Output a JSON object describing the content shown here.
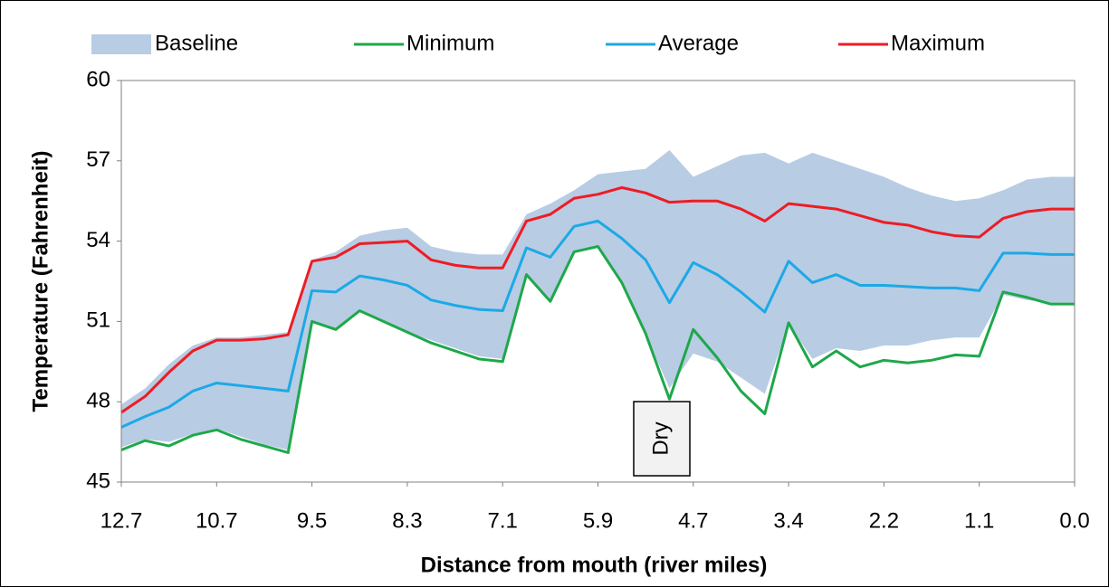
{
  "chart_data": {
    "type": "line",
    "x_label": "Distance from mouth (river miles)",
    "y_label": "Temperature (Fahrenheit)",
    "categories": [
      "12.7",
      null,
      null,
      null,
      "10.7",
      null,
      null,
      null,
      "9.5",
      null,
      null,
      null,
      "8.3",
      null,
      null,
      null,
      "7.1",
      null,
      null,
      null,
      "5.9",
      null,
      null,
      null,
      "4.7",
      null,
      null,
      null,
      "3.4",
      null,
      null,
      null,
      "2.2",
      null,
      null,
      null,
      "1.1",
      null,
      null,
      null,
      "0.0"
    ],
    "ylim": [
      45,
      60
    ],
    "yticks": [
      45,
      48,
      51,
      54,
      57,
      60
    ],
    "grid": false,
    "legend": "top",
    "annotations": [
      "Dry"
    ],
    "series": [
      {
        "name": "Baseline",
        "color": "#b8cce4",
        "kind": "band",
        "values": [
          47.9,
          48.5,
          49.4,
          50.1,
          50.4,
          50.4,
          50.5,
          50.6,
          53.3,
          53.6,
          54.2,
          54.4,
          54.5,
          53.8,
          53.6,
          53.5,
          53.5,
          55.0,
          55.4,
          55.9,
          56.5,
          56.6,
          56.7,
          57.4,
          56.4,
          56.8,
          57.2,
          57.3,
          56.9,
          57.3,
          57.0,
          56.7,
          56.4,
          56.0,
          55.7,
          55.5,
          55.6,
          55.9,
          56.3,
          56.4,
          56.4
        ],
        "lower": [
          46.3,
          46.6,
          46.5,
          46.8,
          47.0,
          46.7,
          46.4,
          46.2,
          51.0,
          50.7,
          51.4,
          51.0,
          50.6,
          50.3,
          50.0,
          49.7,
          49.6,
          52.8,
          51.8,
          53.6,
          53.8,
          52.4,
          50.5,
          48.5,
          49.8,
          49.5,
          48.9,
          48.3,
          50.9,
          49.6,
          50.0,
          49.9,
          50.1,
          50.1,
          50.3,
          50.4,
          50.4,
          52.0,
          51.8,
          51.7,
          51.7
        ]
      },
      {
        "name": "Minimum",
        "color": "#1ea84a",
        "values": [
          46.2,
          46.55,
          46.35,
          46.75,
          46.95,
          46.6,
          46.35,
          46.1,
          51.0,
          50.7,
          51.4,
          51.0,
          50.6,
          50.2,
          49.9,
          49.6,
          49.5,
          52.75,
          51.75,
          53.6,
          53.8,
          52.45,
          50.55,
          48.1,
          50.7,
          49.65,
          48.4,
          47.55,
          50.95,
          49.3,
          49.9,
          49.3,
          49.55,
          49.45,
          49.55,
          49.75,
          49.7,
          52.1,
          51.9,
          51.65,
          51.65
        ]
      },
      {
        "name": "Average",
        "color": "#1ca9e6",
        "values": [
          47.05,
          47.45,
          47.8,
          48.4,
          48.7,
          48.6,
          48.5,
          48.4,
          52.15,
          52.1,
          52.7,
          52.55,
          52.35,
          51.8,
          51.6,
          51.45,
          51.4,
          53.75,
          53.4,
          54.55,
          54.75,
          54.1,
          53.3,
          51.7,
          53.2,
          52.75,
          52.1,
          51.35,
          53.25,
          52.45,
          52.75,
          52.35,
          52.35,
          52.3,
          52.25,
          52.25,
          52.15,
          53.55,
          53.55,
          53.5,
          53.5
        ]
      },
      {
        "name": "Maximum",
        "color": "#ee1c24",
        "values": [
          47.6,
          48.2,
          49.1,
          49.9,
          50.3,
          50.3,
          50.35,
          50.5,
          53.25,
          53.4,
          53.9,
          53.95,
          54.0,
          53.3,
          53.1,
          53.0,
          53.0,
          54.75,
          55.0,
          55.6,
          55.75,
          56.0,
          55.8,
          55.45,
          55.5,
          55.5,
          55.2,
          54.75,
          55.4,
          55.3,
          55.2,
          54.95,
          54.7,
          54.6,
          54.35,
          54.2,
          54.15,
          54.85,
          55.1,
          55.2,
          55.2
        ]
      }
    ]
  }
}
